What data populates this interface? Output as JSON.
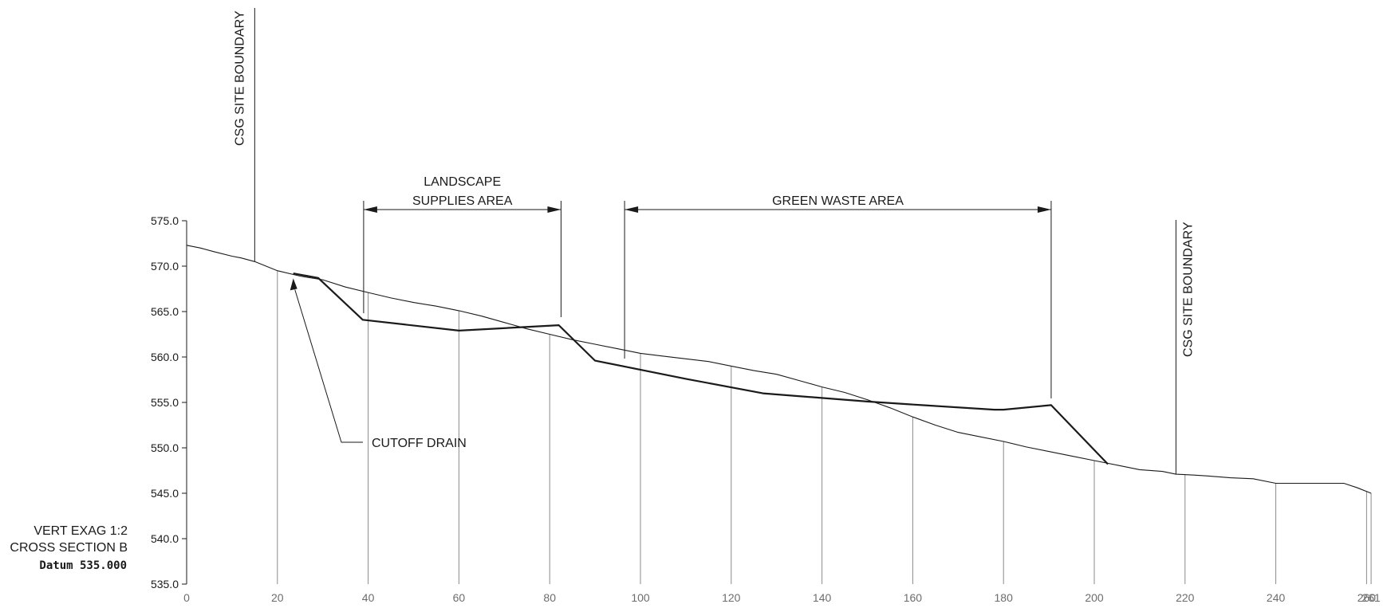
{
  "chart_data": {
    "type": "line",
    "x_ticks": [
      0,
      20,
      40,
      60,
      80,
      100,
      120,
      140,
      160,
      180,
      200,
      220,
      240,
      260,
      261
    ],
    "x_tick_labels": [
      "0",
      "20",
      "40",
      "60",
      "80",
      "100",
      "120",
      "140",
      "160",
      "180",
      "200",
      "220",
      "240",
      "260",
      "261"
    ],
    "y_ticks": [
      535,
      540,
      545,
      550,
      555,
      560,
      565,
      570,
      575
    ],
    "y_tick_labels": [
      "535.0",
      "540.0",
      "545.0",
      "550.0",
      "555.0",
      "560.0",
      "565.0",
      "570.0",
      "575.0"
    ],
    "xlim": [
      0,
      261
    ],
    "ylim": [
      535,
      575
    ],
    "series": [
      {
        "values": [
          [
            0,
            572.3
          ],
          [
            3,
            572
          ],
          [
            6,
            571.6
          ],
          [
            10,
            571.1
          ],
          [
            12,
            570.9
          ],
          [
            15,
            570.5
          ],
          [
            20,
            569.5
          ],
          [
            25,
            568.9
          ],
          [
            30,
            568.5
          ],
          [
            35,
            567.7
          ],
          [
            40,
            567.1
          ],
          [
            45,
            566.5
          ],
          [
            50,
            566
          ],
          [
            55,
            565.6
          ],
          [
            60,
            565.1
          ],
          [
            65,
            564.5
          ],
          [
            70,
            563.8
          ],
          [
            75,
            563.1
          ],
          [
            80,
            562.5
          ],
          [
            85,
            561.9
          ],
          [
            90,
            561.4
          ],
          [
            95,
            560.9
          ],
          [
            100,
            560.4
          ],
          [
            105,
            560.1
          ],
          [
            110,
            559.8
          ],
          [
            115,
            559.5
          ],
          [
            120,
            559
          ],
          [
            125,
            558.5
          ],
          [
            130,
            558.1
          ],
          [
            135,
            557.4
          ],
          [
            140,
            556.7
          ],
          [
            145,
            556.1
          ],
          [
            150,
            555.3
          ],
          [
            155,
            554.4
          ],
          [
            160,
            553.4
          ],
          [
            165,
            552.5
          ],
          [
            170,
            551.7
          ],
          [
            175,
            551.2
          ],
          [
            180,
            550.7
          ],
          [
            185,
            550.1
          ],
          [
            190,
            549.6
          ],
          [
            195,
            549.1
          ],
          [
            200,
            548.6
          ],
          [
            205,
            548.1
          ],
          [
            210,
            547.6
          ],
          [
            215,
            547.4
          ],
          [
            218,
            547.1
          ],
          [
            222,
            547
          ],
          [
            225,
            546.9
          ],
          [
            230,
            546.7
          ],
          [
            235,
            546.6
          ],
          [
            240,
            546.1
          ],
          [
            245,
            546.1
          ],
          [
            250,
            546.1
          ],
          [
            255,
            546.1
          ],
          [
            258,
            545.6
          ],
          [
            261,
            545
          ]
        ]
      },
      {
        "values": [
          [
            23.5,
            569.2
          ],
          [
            29,
            568.7
          ],
          [
            38.8,
            564.1
          ],
          [
            60,
            562.9
          ],
          [
            82,
            563.5
          ],
          [
            90,
            559.6
          ],
          [
            110,
            557.6
          ],
          [
            127,
            556
          ],
          [
            150,
            555.1
          ],
          [
            162,
            554.7
          ],
          [
            178,
            554.2
          ],
          [
            180,
            554.2
          ],
          [
            190.5,
            554.7
          ],
          [
            203,
            548.2
          ]
        ]
      }
    ],
    "stations": [
      20,
      40,
      60,
      80,
      100,
      120,
      140,
      160,
      180,
      200,
      220,
      240,
      260,
      261
    ],
    "annotations": {
      "site_boundary_left": {
        "text": "CSG SITE BOUNDARY",
        "x": 15
      },
      "site_boundary_right": {
        "text": "CSG SITE BOUNDARY",
        "x": 218
      },
      "landscape_area": {
        "line1": "LANDSCAPE",
        "line2": "SUPPLIES AREA",
        "x_start": 39,
        "x_end": 82.5
      },
      "green_waste_area": {
        "text": "GREEN WASTE AREA",
        "x_start": 96.5,
        "x_end": 190.5
      },
      "cutoff_drain": {
        "text": "CUTOFF DRAIN",
        "x": 23.5,
        "y": 569
      }
    }
  },
  "legend_block": {
    "vert_exag": "VERT EXAG  1:2",
    "section": "CROSS  SECTION  B",
    "datum": "Datum 535.000"
  }
}
